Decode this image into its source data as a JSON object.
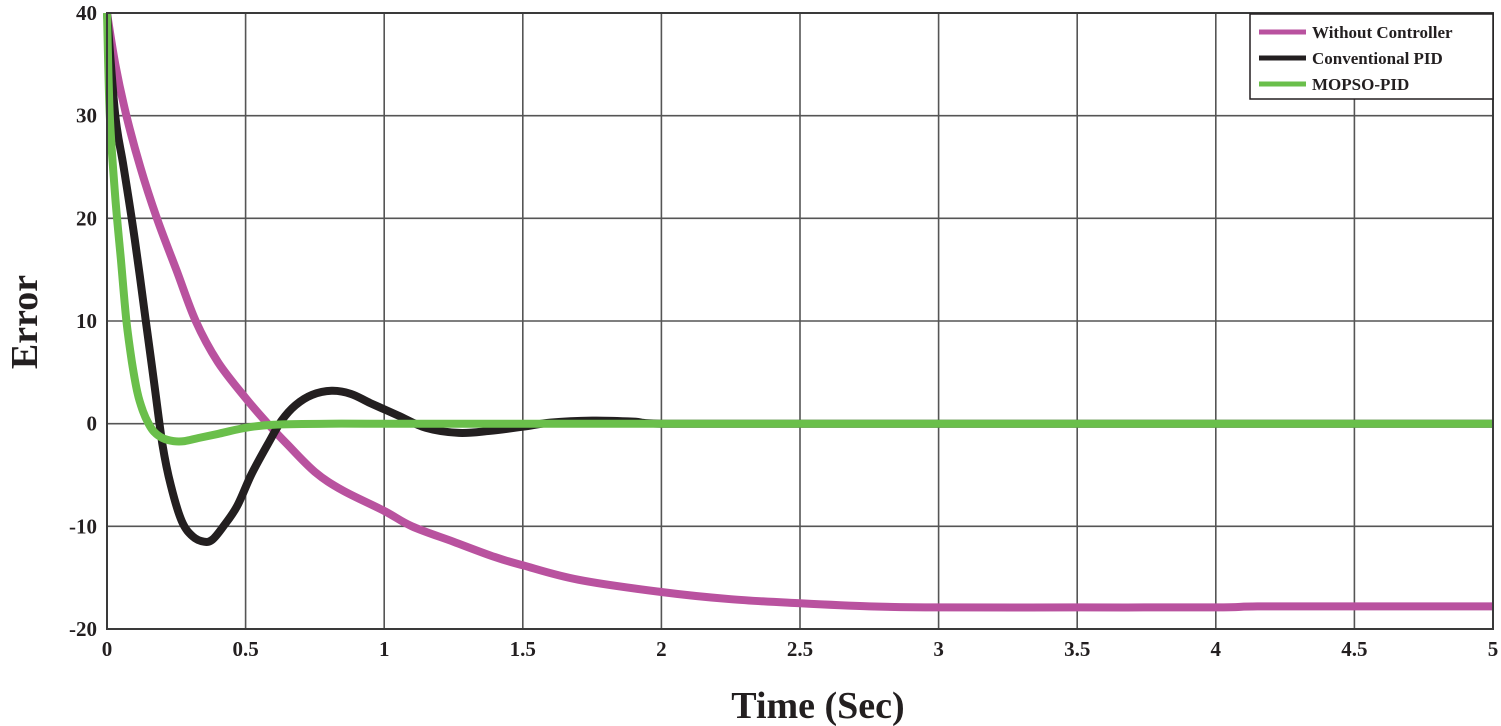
{
  "chart_data": {
    "type": "line",
    "title": "",
    "xlabel": "Time (Sec)",
    "ylabel": "Error",
    "xlim": [
      0,
      5
    ],
    "ylim": [
      -20,
      40
    ],
    "xticks": [
      0,
      0.5,
      1,
      1.5,
      2,
      2.5,
      3,
      3.5,
      4,
      4.5,
      5
    ],
    "xtick_labels": [
      "0",
      "0.5",
      "1",
      "1.5",
      "2",
      "2.5",
      "3",
      "3.5",
      "4",
      "4.5",
      "5"
    ],
    "yticks": [
      -20,
      -10,
      0,
      10,
      20,
      30,
      40
    ],
    "ytick_labels": [
      "-20",
      "-10",
      "0",
      "10",
      "20",
      "30",
      "40"
    ],
    "grid": true,
    "legend_position": "top-right",
    "series": [
      {
        "name": "Without Controller",
        "color": "#b9529f",
        "x": [
          0,
          0.03,
          0.07,
          0.12,
          0.18,
          0.25,
          0.32,
          0.4,
          0.5,
          0.58,
          0.65,
          0.75,
          0.85,
          1.0,
          1.1,
          1.25,
          1.4,
          1.5,
          1.7,
          2.0,
          2.25,
          2.5,
          2.75,
          3.0,
          3.5,
          4.0,
          4.15,
          4.5,
          5.0
        ],
        "y": [
          40,
          35,
          30,
          25,
          20,
          15,
          10,
          6,
          2.5,
          0,
          -2,
          -4.7,
          -6.5,
          -8.5,
          -10,
          -11.5,
          -13,
          -13.8,
          -15.2,
          -16.4,
          -17.1,
          -17.5,
          -17.8,
          -17.9,
          -17.9,
          -17.9,
          -17.8,
          -17.8,
          -17.8
        ]
      },
      {
        "name": "Conventional PID",
        "color": "#231f20",
        "x": [
          0,
          0.03,
          0.06,
          0.1,
          0.14,
          0.17,
          0.2,
          0.23,
          0.27,
          0.31,
          0.35,
          0.38,
          0.42,
          0.47,
          0.52,
          0.58,
          0.63,
          0.68,
          0.74,
          0.81,
          0.88,
          0.95,
          1.05,
          1.15,
          1.27,
          1.38,
          1.5,
          1.6,
          1.75,
          1.9,
          2.0,
          2.5,
          3.0,
          3.5,
          4.0,
          4.5,
          5.0
        ],
        "y": [
          40,
          30,
          25,
          18,
          10,
          4,
          -2,
          -6,
          -9.5,
          -11,
          -11.5,
          -11.3,
          -10,
          -8,
          -5,
          -2,
          0.3,
          1.8,
          2.8,
          3.2,
          2.9,
          2.0,
          0.8,
          -0.4,
          -0.9,
          -0.7,
          -0.3,
          0.1,
          0.3,
          0.2,
          0,
          0,
          0,
          0,
          0,
          0,
          0
        ]
      },
      {
        "name": "MOPSO-PID",
        "color": "#6abf4b",
        "x": [
          0,
          0.01,
          0.03,
          0.05,
          0.07,
          0.09,
          0.11,
          0.13,
          0.15,
          0.17,
          0.2,
          0.24,
          0.28,
          0.33,
          0.4,
          0.5,
          0.6,
          0.8,
          1.0,
          2.0,
          3.0,
          4.0,
          5.0
        ],
        "y": [
          40,
          30,
          22,
          16,
          10,
          6,
          3,
          1.2,
          0,
          -0.8,
          -1.4,
          -1.7,
          -1.7,
          -1.4,
          -1.0,
          -0.4,
          -0.1,
          0,
          0,
          0,
          0,
          0,
          0
        ]
      }
    ]
  },
  "plot": {
    "xlabel": "Time (Sec)",
    "ylabel": "Error",
    "legend": [
      {
        "label": "Without Controller",
        "color": "#b9529f"
      },
      {
        "label": "Conventional PID",
        "color": "#231f20"
      },
      {
        "label": "MOPSO-PID",
        "color": "#6abf4b"
      }
    ],
    "grid_color": "#555555",
    "axis_color": "#231f20"
  }
}
